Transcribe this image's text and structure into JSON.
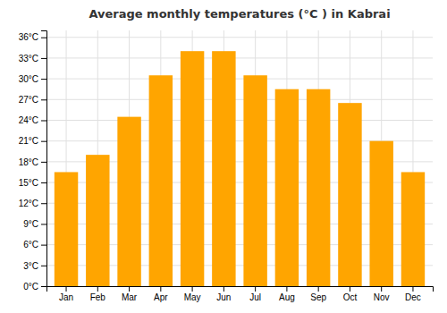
{
  "chart_data": {
    "type": "bar",
    "title": "Average monthly temperatures (°C ) in Kabrai",
    "categories": [
      "Jan",
      "Feb",
      "Mar",
      "Apr",
      "May",
      "Jun",
      "Jul",
      "Aug",
      "Sep",
      "Oct",
      "Nov",
      "Dec"
    ],
    "values": [
      16.5,
      19.0,
      24.5,
      30.5,
      34.0,
      34.0,
      30.5,
      28.5,
      28.5,
      26.5,
      21.0,
      16.5
    ],
    "color": "#FFA500",
    "ylim": [
      0,
      37
    ],
    "yticks": [
      {
        "value": 0,
        "label": "0°C"
      },
      {
        "value": 3,
        "label": "3°C"
      },
      {
        "value": 6,
        "label": "6°C"
      },
      {
        "value": 9,
        "label": "9°C"
      },
      {
        "value": 12,
        "label": "12°C"
      },
      {
        "value": 15,
        "label": "15°C"
      },
      {
        "value": 18,
        "label": "18°C"
      },
      {
        "value": 21,
        "label": "21°C"
      },
      {
        "value": 24,
        "label": "24°C"
      },
      {
        "value": 27,
        "label": "27°C"
      },
      {
        "value": 30,
        "label": "30°C"
      },
      {
        "value": 33,
        "label": "33°C"
      },
      {
        "value": 36,
        "label": "36°C"
      }
    ],
    "grid": true
  }
}
